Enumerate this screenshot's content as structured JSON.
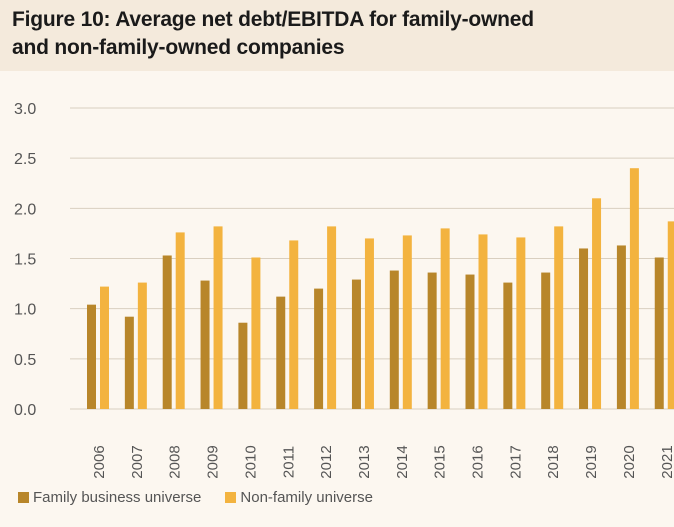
{
  "title_lines": [
    "Figure 10: Average net debt/EBITDA for family-owned",
    "and non-family-owned companies"
  ],
  "colors": {
    "family": "#b8862a",
    "non_family": "#f3b33f",
    "grid": "#d9cfc0",
    "axis_text": "#555555"
  },
  "chart_data": {
    "type": "bar",
    "title": "Figure 10: Average net debt/EBITDA for family-owned and non-family-owned companies",
    "categories": [
      "2006",
      "2007",
      "2008",
      "2009",
      "2010",
      "2011",
      "2012",
      "2013",
      "2014",
      "2015",
      "2016",
      "2017",
      "2018",
      "2019",
      "2020",
      "2021"
    ],
    "series": [
      {
        "name": "Family business universe",
        "values": [
          1.04,
          0.92,
          1.53,
          1.28,
          0.86,
          1.12,
          1.2,
          1.29,
          1.38,
          1.36,
          1.34,
          1.26,
          1.36,
          1.6,
          1.63,
          1.51
        ]
      },
      {
        "name": "Non-family universe",
        "values": [
          1.22,
          1.26,
          1.76,
          1.82,
          1.51,
          1.68,
          1.82,
          1.7,
          1.73,
          1.8,
          1.74,
          1.71,
          1.82,
          2.1,
          2.4,
          1.87
        ]
      }
    ],
    "y_ticks": [
      "0.0",
      "0.5",
      "1.0",
      "1.5",
      "2.0",
      "2.5",
      "3.0"
    ],
    "ylim": [
      0,
      3.0
    ],
    "grid": true,
    "legend_position": "bottom-left"
  }
}
